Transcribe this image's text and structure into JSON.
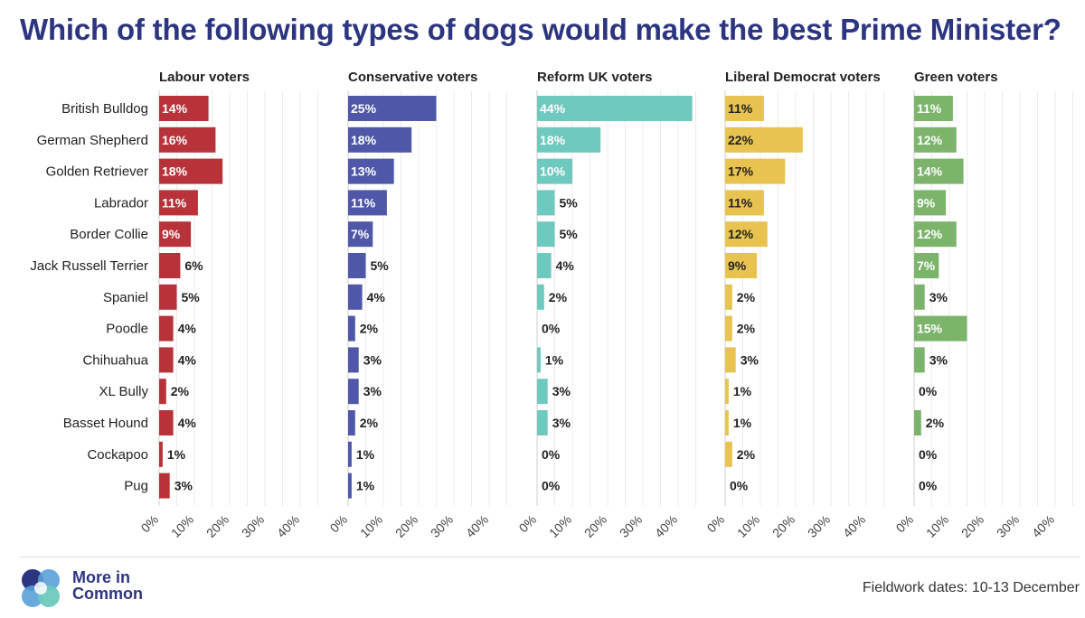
{
  "title": "Which of the following types of dogs would make the best Prime Minister?",
  "logo": {
    "line1": "More in",
    "line2": "Common",
    "icon": "more-in-common-logo-icon"
  },
  "fieldwork": "Fieldwork dates: 10-13 December",
  "chart_data": {
    "type": "bar",
    "orientation": "horizontal",
    "title": "Which of the following types of dogs would make the best Prime Minister?",
    "categories": [
      "British Bulldog",
      "German Shepherd",
      "Golden Retriever",
      "Labrador",
      "Border Collie",
      "Jack Russell Terrier",
      "Spaniel",
      "Poodle",
      "Chihuahua",
      "XL Bully",
      "Basset Hound",
      "Cockapoo",
      "Pug"
    ],
    "xlim": [
      0,
      45
    ],
    "xticks": [
      "0%",
      "10%",
      "20%",
      "30%",
      "40%"
    ],
    "grid": true,
    "series": [
      {
        "name": "Labour voters",
        "color": "#b8323a",
        "values": [
          14,
          16,
          18,
          11,
          9,
          6,
          5,
          4,
          4,
          2,
          4,
          1,
          3
        ]
      },
      {
        "name": "Conservative voters",
        "color": "#4f57a8",
        "values": [
          25,
          18,
          13,
          11,
          7,
          5,
          4,
          2,
          3,
          3,
          2,
          1,
          1
        ]
      },
      {
        "name": "Reform UK voters",
        "color": "#6fc9be",
        "values": [
          44,
          18,
          10,
          5,
          5,
          4,
          2,
          0,
          1,
          3,
          3,
          0,
          0
        ]
      },
      {
        "name": "Liberal Democrat voters",
        "color": "#e8c350",
        "values": [
          11,
          22,
          17,
          11,
          12,
          9,
          2,
          2,
          3,
          1,
          1,
          2,
          0
        ]
      },
      {
        "name": "Green voters",
        "color": "#7cb46b",
        "values": [
          11,
          12,
          14,
          9,
          12,
          7,
          3,
          15,
          3,
          0,
          2,
          0,
          0
        ]
      }
    ]
  }
}
